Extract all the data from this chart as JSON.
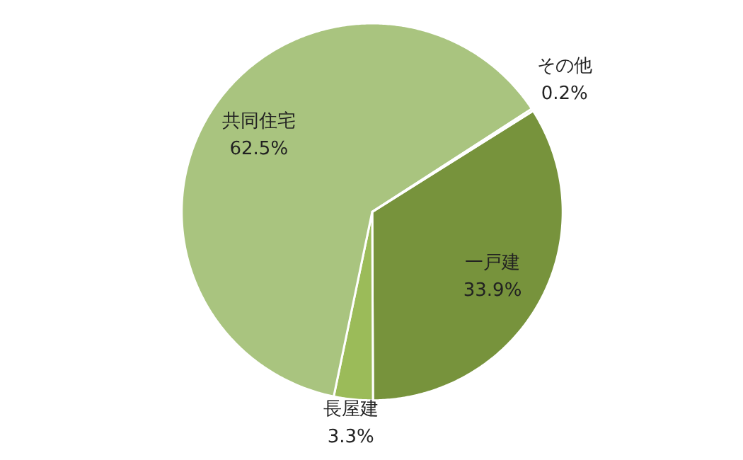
{
  "chart_data": {
    "type": "pie",
    "categories": [
      "一戸建",
      "長屋建",
      "共同住宅",
      "その他"
    ],
    "values": [
      33.9,
      3.3,
      62.5,
      0.2
    ],
    "colors": [
      "#77933c",
      "#9bbb59",
      "#a9c47f",
      "#c3d69b"
    ],
    "value_labels": [
      "33.9%",
      "3.3%",
      "62.5%",
      "0.2%"
    ]
  }
}
